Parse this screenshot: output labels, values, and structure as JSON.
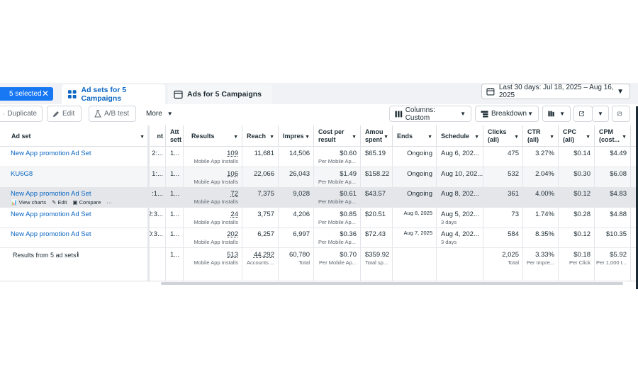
{
  "selection": {
    "label": "5 selected"
  },
  "tabs": [
    {
      "label": "Ad sets for 5 Campaigns",
      "icon": "grid-icon"
    },
    {
      "label": "Ads for 5 Campaigns",
      "icon": "ad-window-icon"
    }
  ],
  "date_range": {
    "label": "Last 30 days: Jul 18, 2025 – Aug 16, 2025"
  },
  "toolbar": {
    "duplicate": "Duplicate",
    "edit": "Edit",
    "ab_test": "A/B test",
    "more": "More",
    "columns": "Columns: Custom",
    "breakdown": "Breakdown"
  },
  "columns": {
    "adset": "Ad set",
    "nt": "nt",
    "att_1": "Att",
    "att_2": "sett",
    "results": "Results",
    "reach": "Reach",
    "impres": "Impres",
    "cpr_1": "Cost per",
    "cpr_2": "result",
    "amount_1": "Amou",
    "amount_2": "spent",
    "ends": "Ends",
    "schedule": "Schedule",
    "clicks_1": "Clicks",
    "clicks_2": "(all)",
    "ctr_1": "CTR",
    "ctr_2": "(all)",
    "cpc_1": "CPC",
    "cpc_2": "(all)",
    "cpm_1": "CPM",
    "cpm_2": "(cost..."
  },
  "row_tools": {
    "view_charts": "View charts",
    "edit": "Edit",
    "compare": "Compare",
    "more": "···"
  },
  "rows": [
    {
      "name": "New App promotion Ad Set",
      "nt": "2:...",
      "att": "1...",
      "results": "109",
      "results_sub": "Mobile App Installs",
      "reach": "11,681",
      "impressions": "14,506",
      "cpr": "$0.60",
      "cpr_sub": "Per Mobile Ap...",
      "spent": "$65.19",
      "ends": "Ongoing",
      "schedule": "Aug 6, 202...",
      "schedule_sub": "",
      "clicks": "475",
      "ctr": "3.27%",
      "cpc": "$0.14",
      "cpm": "$4.49"
    },
    {
      "name": "KU6G8",
      "nt": "1:...",
      "att": "1...",
      "results": "106",
      "results_sub": "Mobile App Installs",
      "reach": "22,066",
      "impressions": "26,043",
      "cpr": "$1.49",
      "cpr_sub": "Per Mobile Ap...",
      "spent": "$158.22",
      "ends": "Ongoing",
      "schedule": "Aug 10, 202...",
      "schedule_sub": "",
      "clicks": "532",
      "ctr": "2.04%",
      "cpc": "$0.30",
      "cpm": "$6.08"
    },
    {
      "name": "New App promotion Ad Set",
      "nt": ":1...",
      "att": "1...",
      "results": "72",
      "results_sub": "Mobile App Installs",
      "reach": "7,375",
      "impressions": "9,028",
      "cpr": "$0.61",
      "cpr_sub": "Per Mobile Ap...",
      "spent": "$43.57",
      "ends": "Ongoing",
      "schedule": "Aug 8, 202...",
      "schedule_sub": "",
      "clicks": "361",
      "ctr": "4.00%",
      "cpc": "$0.12",
      "cpm": "$4.83"
    },
    {
      "name": "New App promotion Ad Set",
      "nt": "2:3...",
      "att": "1...",
      "results": "24",
      "results_sub": "Mobile App Installs",
      "reach": "3,757",
      "impressions": "4,206",
      "cpr": "$0.85",
      "cpr_sub": "Per Mobile Ap...",
      "spent": "$20.51",
      "ends": "Aug 8, 2025",
      "schedule": "Aug 5, 202...",
      "schedule_sub": "3 days",
      "clicks": "73",
      "ctr": "1.74%",
      "cpc": "$0.28",
      "cpm": "$4.88"
    },
    {
      "name": "New App promotion Ad Set",
      "nt": "0:3...",
      "att": "1...",
      "results": "202",
      "results_sub": "Mobile App Installs",
      "reach": "6,257",
      "impressions": "6,997",
      "cpr": "$0.36",
      "cpr_sub": "Per Mobile Ap...",
      "spent": "$72.43",
      "ends": "Aug 7, 2025",
      "schedule": "Aug 4, 202...",
      "schedule_sub": "3 days",
      "clicks": "584",
      "ctr": "8.35%",
      "cpc": "$0.12",
      "cpm": "$10.35"
    }
  ],
  "totals": {
    "label": "Results from 5 ad sets",
    "att": "1...",
    "results": "513",
    "results_sub": "Mobile App Installs",
    "reach": "44,292",
    "reach_sub": "Accounts ...",
    "impressions": "60,780",
    "impressions_sub": "Total",
    "cpr": "$0.70",
    "cpr_sub": "Per Mobile Ap...",
    "spent": "$359.92",
    "spent_sub": "Total sp...",
    "clicks": "2,025",
    "clicks_sub": "Total",
    "ctr": "3.33%",
    "ctr_sub": "Per Impre...",
    "cpc": "$0.18",
    "cpc_sub": "Per Click",
    "cpm": "$5.92",
    "cpm_sub": "Per 1,000 I..."
  },
  "colors": {
    "accent": "#1877f2",
    "link": "#0a66c2",
    "text": "#1c2b33"
  }
}
